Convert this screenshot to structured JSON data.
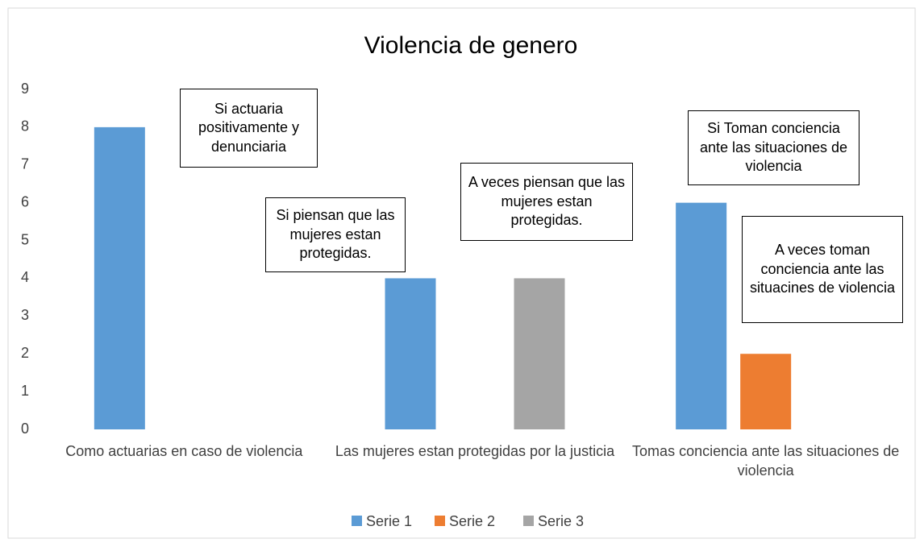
{
  "chart_data": {
    "type": "bar",
    "title": "Violencia de genero",
    "categories": [
      "Como actuarias en caso de violencia",
      "Las mujeres estan protegidas por la justicia",
      "Tomas conciencia ante las situaciones de violencia"
    ],
    "series": [
      {
        "name": "Serie 1",
        "color": "#5b9bd5",
        "values": [
          8,
          4,
          6
        ]
      },
      {
        "name": "Serie 2",
        "color": "#ed7d31",
        "values": [
          null,
          null,
          2
        ]
      },
      {
        "name": "Serie 3",
        "color": "#a5a5a5",
        "values": [
          null,
          4,
          null
        ]
      }
    ],
    "ylim": [
      0,
      9
    ],
    "yticks": [
      0,
      1,
      2,
      3,
      4,
      5,
      6,
      7,
      8,
      9
    ],
    "grid": false,
    "legend": "bottom",
    "annotations": [
      "Si actuaria positivamente y denunciaria",
      "Si piensan que las mujeres estan protegidas.",
      "A veces piensan que las mujeres estan protegidas.",
      "Si Toman conciencia ante las situaciones de violencia",
      "A veces toman conciencia ante las situacines de violencia"
    ]
  }
}
